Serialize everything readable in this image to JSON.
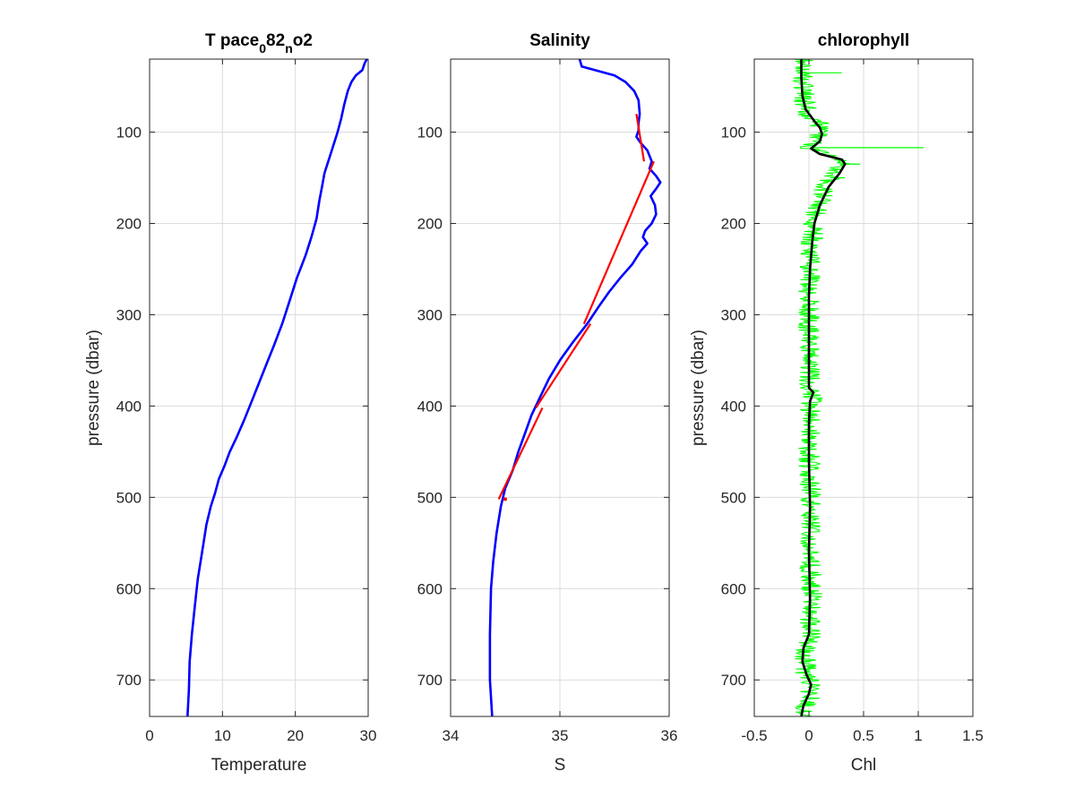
{
  "chart_data": [
    {
      "type": "line",
      "title": "T pace",
      "title_parts": [
        {
          "text": "T pace",
          "shift": 0
        },
        {
          "text": "0",
          "shift": 1
        },
        {
          "text": "82",
          "shift": 0
        },
        {
          "text": "n",
          "shift": 1
        },
        {
          "text": "o2",
          "shift": 0
        }
      ],
      "xlabel": "Temperature",
      "ylabel": "pressure (dbar)",
      "xlim": [
        0,
        30
      ],
      "ylim": [
        20,
        740
      ],
      "y_reversed": true,
      "xticks": [
        0,
        10,
        20,
        30
      ],
      "xtick_labels": [
        "0",
        "10",
        "20",
        "30"
      ],
      "yticks": [
        100,
        200,
        300,
        400,
        500,
        600,
        700
      ],
      "ytick_labels": [
        "100",
        "200",
        "300",
        "400",
        "500",
        "600",
        "700"
      ],
      "grid": true,
      "series": [
        {
          "color": "#0000ff",
          "points": [
            [
              29.8,
              20
            ],
            [
              29.5,
              25
            ],
            [
              29.2,
              32
            ],
            [
              28.3,
              38
            ],
            [
              27.7,
              45
            ],
            [
              27.2,
              55
            ],
            [
              26.7,
              70
            ],
            [
              26.3,
              85
            ],
            [
              25.8,
              100
            ],
            [
              25.2,
              115
            ],
            [
              24.6,
              130
            ],
            [
              24.0,
              145
            ],
            [
              23.7,
              158
            ],
            [
              23.3,
              175
            ],
            [
              22.9,
              195
            ],
            [
              22.2,
              215
            ],
            [
              21.4,
              235
            ],
            [
              20.2,
              260
            ],
            [
              19.2,
              285
            ],
            [
              18.2,
              310
            ],
            [
              17.0,
              335
            ],
            [
              16.0,
              355
            ],
            [
              15.0,
              375
            ],
            [
              14.0,
              395
            ],
            [
              13.0,
              415
            ],
            [
              11.9,
              435
            ],
            [
              11.0,
              450
            ],
            [
              10.3,
              465
            ],
            [
              9.5,
              480
            ],
            [
              9.0,
              495
            ],
            [
              8.4,
              510
            ],
            [
              7.8,
              530
            ],
            [
              7.2,
              560
            ],
            [
              6.6,
              590
            ],
            [
              6.2,
              620
            ],
            [
              5.8,
              650
            ],
            [
              5.5,
              680
            ],
            [
              5.4,
              710
            ],
            [
              5.2,
              740
            ]
          ]
        }
      ]
    },
    {
      "type": "line",
      "title": "Salinity",
      "xlabel": "S",
      "ylabel": "",
      "xlim": [
        34,
        36
      ],
      "ylim": [
        20,
        740
      ],
      "y_reversed": true,
      "xticks": [
        34,
        35,
        36
      ],
      "xtick_labels": [
        "34",
        "35",
        "36"
      ],
      "yticks": [
        100,
        200,
        300,
        400,
        500,
        600,
        700
      ],
      "ytick_labels": [
        "100",
        "200",
        "300",
        "400",
        "500",
        "600",
        "700"
      ],
      "grid": true,
      "series": [
        {
          "color": "#0000ff",
          "points": [
            [
              35.18,
              20
            ],
            [
              35.2,
              28
            ],
            [
              35.35,
              33
            ],
            [
              35.5,
              38
            ],
            [
              35.6,
              45
            ],
            [
              35.68,
              55
            ],
            [
              35.72,
              65
            ],
            [
              35.73,
              80
            ],
            [
              35.72,
              90
            ],
            [
              35.72,
              98
            ],
            [
              35.7,
              105
            ],
            [
              35.74,
              112
            ],
            [
              35.8,
              120
            ],
            [
              35.84,
              132
            ],
            [
              35.82,
              140
            ],
            [
              35.88,
              148
            ],
            [
              35.92,
              155
            ],
            [
              35.88,
              162
            ],
            [
              35.83,
              170
            ],
            [
              35.87,
              180
            ],
            [
              35.88,
              190
            ],
            [
              35.84,
              200
            ],
            [
              35.78,
              208
            ],
            [
              35.76,
              215
            ],
            [
              35.8,
              222
            ],
            [
              35.74,
              230
            ],
            [
              35.66,
              245
            ],
            [
              35.55,
              260
            ],
            [
              35.45,
              275
            ],
            [
              35.35,
              292
            ],
            [
              35.25,
              310
            ],
            [
              35.12,
              330
            ],
            [
              35.0,
              350
            ],
            [
              34.9,
              370
            ],
            [
              34.82,
              390
            ],
            [
              34.74,
              410
            ],
            [
              34.68,
              430
            ],
            [
              34.62,
              450
            ],
            [
              34.57,
              470
            ],
            [
              34.5,
              490
            ],
            [
              34.46,
              510
            ],
            [
              34.42,
              540
            ],
            [
              34.39,
              570
            ],
            [
              34.37,
              600
            ],
            [
              34.36,
              650
            ],
            [
              34.36,
              700
            ],
            [
              34.38,
              740
            ]
          ]
        },
        {
          "color": "#ff0000",
          "points": [
            [
              35.7,
              80
            ],
            [
              35.77,
              132
            ],
            [
              35.86,
              132
            ],
            [
              35.22,
              310
            ],
            [
              35.28,
              310
            ],
            [
              34.78,
              402
            ],
            [
              34.84,
              402
            ],
            [
              34.44,
              502
            ],
            [
              34.5,
              502
            ]
          ]
        }
      ]
    },
    {
      "type": "line",
      "title": "chlorophyll",
      "xlabel": "Chl",
      "ylabel": "pressure (dbar)",
      "xlim": [
        -0.5,
        1.5
      ],
      "ylim": [
        20,
        740
      ],
      "y_reversed": true,
      "xticks": [
        -0.5,
        0,
        0.5,
        1,
        1.5
      ],
      "xtick_labels": [
        "-0.5",
        "0",
        "0.5",
        "1",
        "1.5"
      ],
      "yticks": [
        100,
        200,
        300,
        400,
        500,
        600,
        700
      ],
      "ytick_labels": [
        "100",
        "200",
        "300",
        "400",
        "500",
        "600",
        "700"
      ],
      "grid": true,
      "series": [
        {
          "color": "#00ff00",
          "points": [
            [
              -0.05,
              20
            ],
            [
              -0.05,
              60
            ],
            [
              -0.02,
              80
            ],
            [
              0.08,
              90
            ],
            [
              0.1,
              100
            ],
            [
              0.08,
              110
            ],
            [
              0.0,
              118
            ],
            [
              0.25,
              130
            ],
            [
              0.3,
              135
            ],
            [
              0.22,
              145
            ],
            [
              0.15,
              160
            ],
            [
              0.08,
              180
            ],
            [
              0.04,
              200
            ],
            [
              0.02,
              230
            ],
            [
              0.0,
              270
            ],
            [
              0.0,
              320
            ],
            [
              0.01,
              380
            ],
            [
              0.05,
              385
            ],
            [
              0.01,
              400
            ],
            [
              0.0,
              460
            ],
            [
              0.02,
              510
            ],
            [
              0.01,
              560
            ],
            [
              0.03,
              620
            ],
            [
              0.0,
              660
            ],
            [
              -0.03,
              670
            ],
            [
              -0.03,
              695
            ],
            [
              0.01,
              705
            ],
            [
              0.0,
              720
            ],
            [
              -0.05,
              740
            ]
          ],
          "band_half_width": 0.1,
          "spikes": [
            [
              0.3,
              35
            ],
            [
              1.05,
              117
            ],
            [
              0.47,
              135
            ],
            [
              0.33,
              150
            ]
          ]
        },
        {
          "color": "#000000",
          "points": [
            [
              -0.07,
              20
            ],
            [
              -0.07,
              40
            ],
            [
              -0.06,
              60
            ],
            [
              -0.03,
              75
            ],
            [
              0.05,
              88
            ],
            [
              0.1,
              95
            ],
            [
              0.12,
              102
            ],
            [
              0.1,
              110
            ],
            [
              0.02,
              118
            ],
            [
              0.1,
              124
            ],
            [
              0.3,
              130
            ],
            [
              0.33,
              135
            ],
            [
              0.28,
              145
            ],
            [
              0.18,
              160
            ],
            [
              0.1,
              180
            ],
            [
              0.05,
              200
            ],
            [
              0.03,
              220
            ],
            [
              0.01,
              250
            ],
            [
              0.0,
              280
            ],
            [
              0.0,
              320
            ],
            [
              0.0,
              370
            ],
            [
              0.0,
              380
            ],
            [
              0.04,
              385
            ],
            [
              0.01,
              395
            ],
            [
              0.0,
              420
            ],
            [
              0.0,
              460
            ],
            [
              0.01,
              510
            ],
            [
              0.0,
              560
            ],
            [
              0.01,
              610
            ],
            [
              0.0,
              650
            ],
            [
              -0.05,
              665
            ],
            [
              -0.06,
              680
            ],
            [
              -0.02,
              695
            ],
            [
              0.02,
              705
            ],
            [
              0.0,
              715
            ],
            [
              -0.05,
              728
            ],
            [
              -0.07,
              740
            ]
          ]
        }
      ]
    }
  ]
}
